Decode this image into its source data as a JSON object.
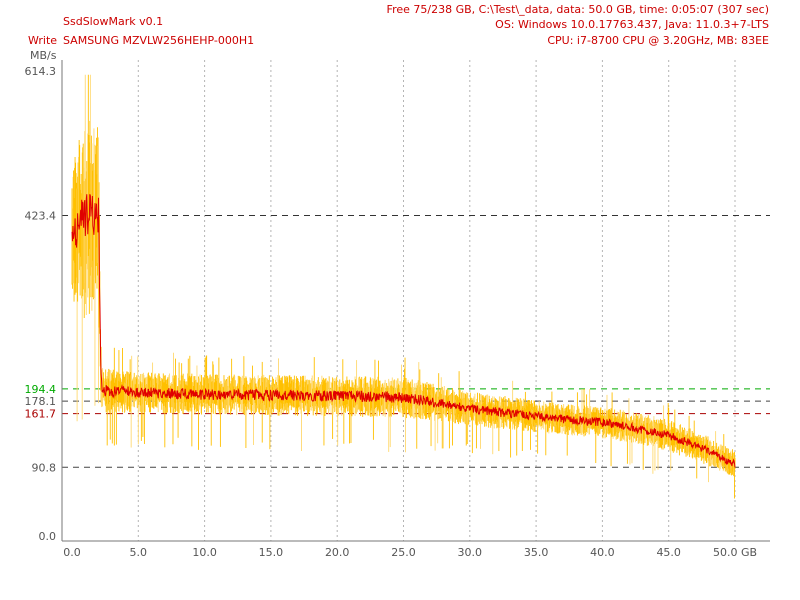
{
  "header": {
    "app_title": "SsdSlowMark v0.1",
    "mode": "Write",
    "device": "SAMSUNG MZVLW256HEHP-000H1",
    "info_free": "Free 75/238 GB, C:\\Test\\_data, data: 50.0 GB, time: 0:05:07 (307 sec)",
    "info_os": "OS: Windows 10.0.17763.437, Java: 11.0.3+7-LTS",
    "info_cpu": "CPU: i7-8700 CPU @ 3.20GHz, MB: 83EE"
  },
  "colors": {
    "title_gray": "#555555",
    "red_text": "#cc0000",
    "max_band": "#ffc000",
    "max_band_light": "#ffd970",
    "avg_line": "#e00000",
    "line_max": "#222222",
    "line_avg": "#00aa00",
    "line_median": "#444444",
    "line_min_fast": "#aa0000",
    "line_min": "#444444",
    "grid": "#b4b4b4",
    "axis": "#777777"
  },
  "chart_data": {
    "type": "line",
    "ylabel": "MB/s",
    "xlabel": "GB",
    "xlim": [
      0,
      50
    ],
    "ylim": [
      0,
      614.3
    ],
    "x_ticks": [
      "0.0",
      "5.0",
      "10.0",
      "15.0",
      "20.0",
      "25.0",
      "30.0",
      "35.0",
      "40.0",
      "45.0",
      "50.0 GB"
    ],
    "y_ticks": [
      {
        "label": "614.3",
        "value": 614.3
      },
      {
        "label": "423.4",
        "value": 423.4
      },
      {
        "label": "194.4",
        "value": 194.4
      },
      {
        "label": "178.1",
        "value": 178.1
      },
      {
        "label": "161.7",
        "value": 161.7
      },
      {
        "label": "90.8",
        "value": 90.8
      },
      {
        "label": "0.0",
        "value": 0
      }
    ],
    "reference_lines": [
      {
        "value": 423.4,
        "color": "#333333"
      },
      {
        "value": 194.4,
        "color": "#00aa00"
      },
      {
        "value": 178.1,
        "color": "#444444"
      },
      {
        "value": 161.7,
        "color": "#aa0000"
      },
      {
        "value": 90.8,
        "color": "#444444"
      }
    ],
    "series": [
      {
        "x": [
          0,
          0.5,
          1.0,
          1.5,
          2.0,
          2.2,
          2.5,
          5,
          10,
          15,
          20,
          25,
          28,
          30,
          33,
          35,
          38,
          40,
          42,
          44,
          45,
          46,
          47,
          48,
          49,
          50
        ],
        "values": [
          395,
          410,
          420,
          425,
          420,
          200,
          192,
          190,
          187,
          186,
          185,
          183,
          175,
          168,
          162,
          158,
          153,
          150,
          144,
          137,
          133,
          126,
          120,
          112,
          103,
          95
        ],
        "spread": [
          50,
          70,
          80,
          80,
          70,
          24,
          20,
          18,
          18,
          18,
          18,
          18,
          16,
          15,
          15,
          14,
          14,
          14,
          14,
          14,
          14,
          14,
          13,
          13,
          12,
          12
        ]
      }
    ]
  }
}
